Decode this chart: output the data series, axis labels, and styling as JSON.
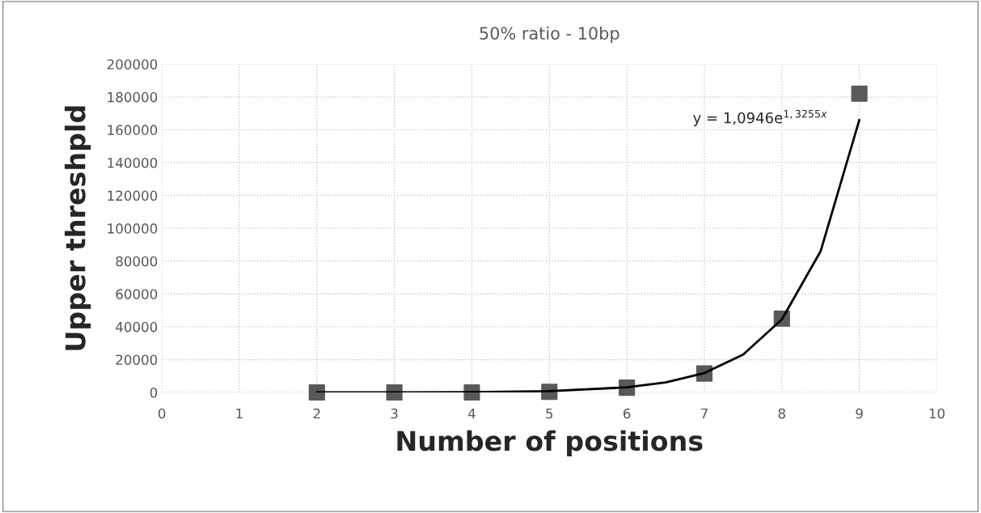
{
  "chart_data": {
    "type": "scatter",
    "title": "50% ratio - 10bp",
    "xlabel": "Number of positions",
    "ylabel": "Upper threshpld",
    "xlim": [
      0,
      10
    ],
    "xticks": [
      0,
      1,
      2,
      3,
      4,
      5,
      6,
      7,
      8,
      9,
      10
    ],
    "ylim": [
      0,
      200000
    ],
    "yticks": [
      0,
      20000,
      40000,
      60000,
      80000,
      100000,
      120000,
      140000,
      160000,
      180000,
      200000
    ],
    "grid": true,
    "marker": "square",
    "legend": false,
    "annotations": [
      "y = 1,0946e$^{1,3255x}$"
    ],
    "series": [
      {
        "color": "#595959",
        "x": [
          2,
          3,
          4,
          5,
          6,
          7,
          8,
          9
        ],
        "values": [
          0,
          0,
          0,
          400,
          2900,
          11500,
          45000,
          182000
        ]
      },
      {
        "type": "line",
        "color": "#000000",
        "marker": "none",
        "line_style": "solid",
        "x": [
          2,
          3,
          4,
          5,
          6,
          6.5,
          7,
          7.5,
          8,
          8.5,
          9
        ],
        "values": [
          0,
          0,
          200,
          800,
          3100,
          6100,
          11800,
          23000,
          44500,
          86000,
          166000
        ]
      }
    ]
  }
}
